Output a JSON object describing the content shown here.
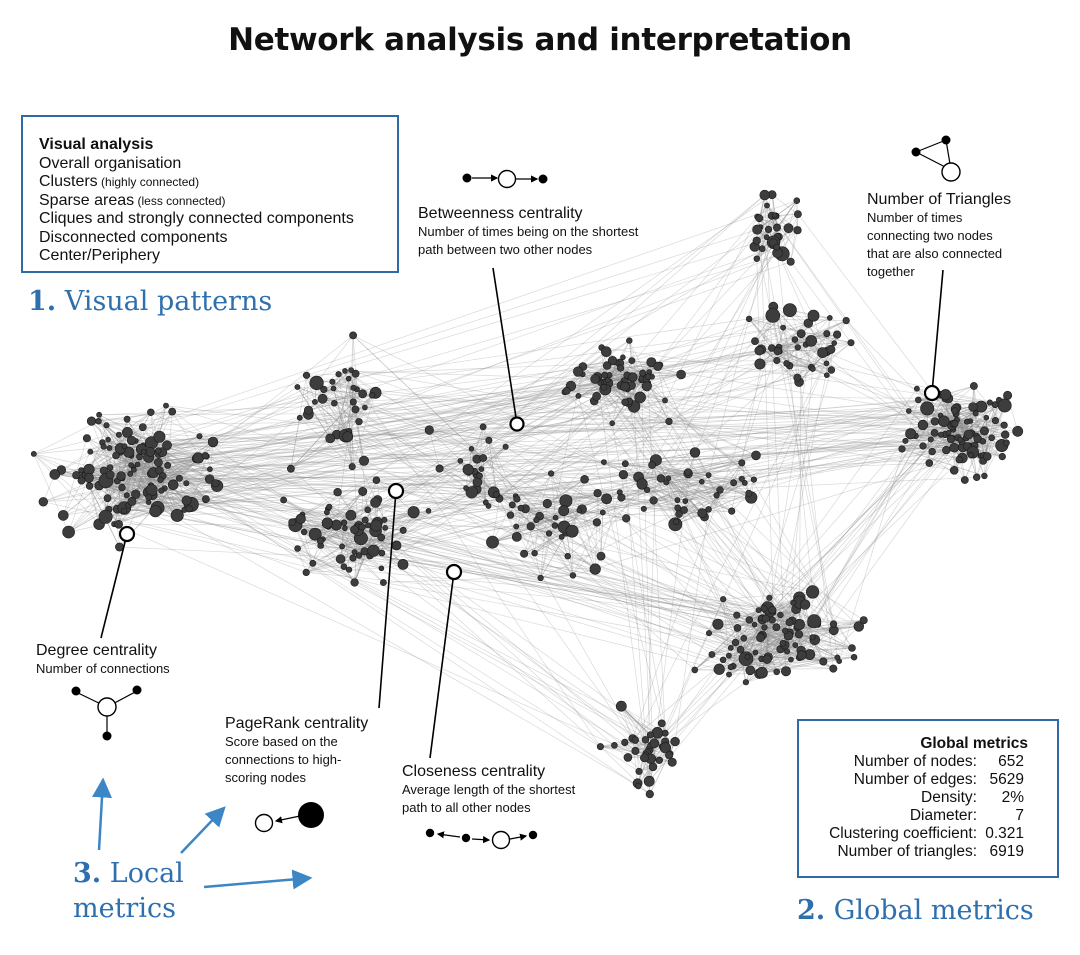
{
  "title": "Network analysis and interpretation",
  "visual_analysis": {
    "heading": "Visual analysis",
    "items": [
      {
        "text": "Overall organisation",
        "note": ""
      },
      {
        "text": "Clusters",
        "note": " (highly connected)"
      },
      {
        "text": "Sparse areas",
        "note": " (less connected)"
      },
      {
        "text": "Cliques and strongly connected components",
        "note": ""
      },
      {
        "text": "Disconnected components",
        "note": ""
      },
      {
        "text": "Center/Periphery",
        "note": ""
      }
    ]
  },
  "sections": {
    "visual_patterns": {
      "number": "1.",
      "label": "Visual patterns"
    },
    "global_metrics": {
      "number": "2.",
      "label": "Global metrics"
    },
    "local_metrics": {
      "number": "3.",
      "line1": "Local",
      "line2": "metrics"
    }
  },
  "global_metrics": {
    "heading": "Global metrics",
    "rows": [
      {
        "label": "Number of nodes:",
        "value": "652"
      },
      {
        "label": "Number of edges:",
        "value": "5629"
      },
      {
        "label": "Density:",
        "value": "2%"
      },
      {
        "label": "Diameter:",
        "value": "7"
      },
      {
        "label": "Clustering coefficient:",
        "value": "0.321"
      },
      {
        "label": "Number of triangles:",
        "value": "6919"
      }
    ]
  },
  "local_metrics": {
    "betweenness": {
      "title": "Betweenness centrality",
      "desc": [
        "Number of times being on the shortest",
        "path between two other nodes"
      ]
    },
    "triangles": {
      "title": "Number of Triangles",
      "desc": [
        "Number of times",
        "connecting two nodes",
        "that are also connected",
        "together"
      ]
    },
    "degree": {
      "title": "Degree centrality",
      "desc": [
        "Number of connections"
      ]
    },
    "pagerank": {
      "title": "PageRank centrality",
      "desc": [
        "Score based on the",
        "connections to high-",
        "scoring nodes"
      ]
    },
    "closeness": {
      "title": "Closeness centrality",
      "desc": [
        "Average length of the shortest",
        "path to all other nodes"
      ]
    }
  },
  "colors": {
    "accent": "#2e6fae",
    "box_border": "#2e6aa6",
    "node_fill": "#3d3d3d",
    "edge": "#8a8a8a"
  }
}
